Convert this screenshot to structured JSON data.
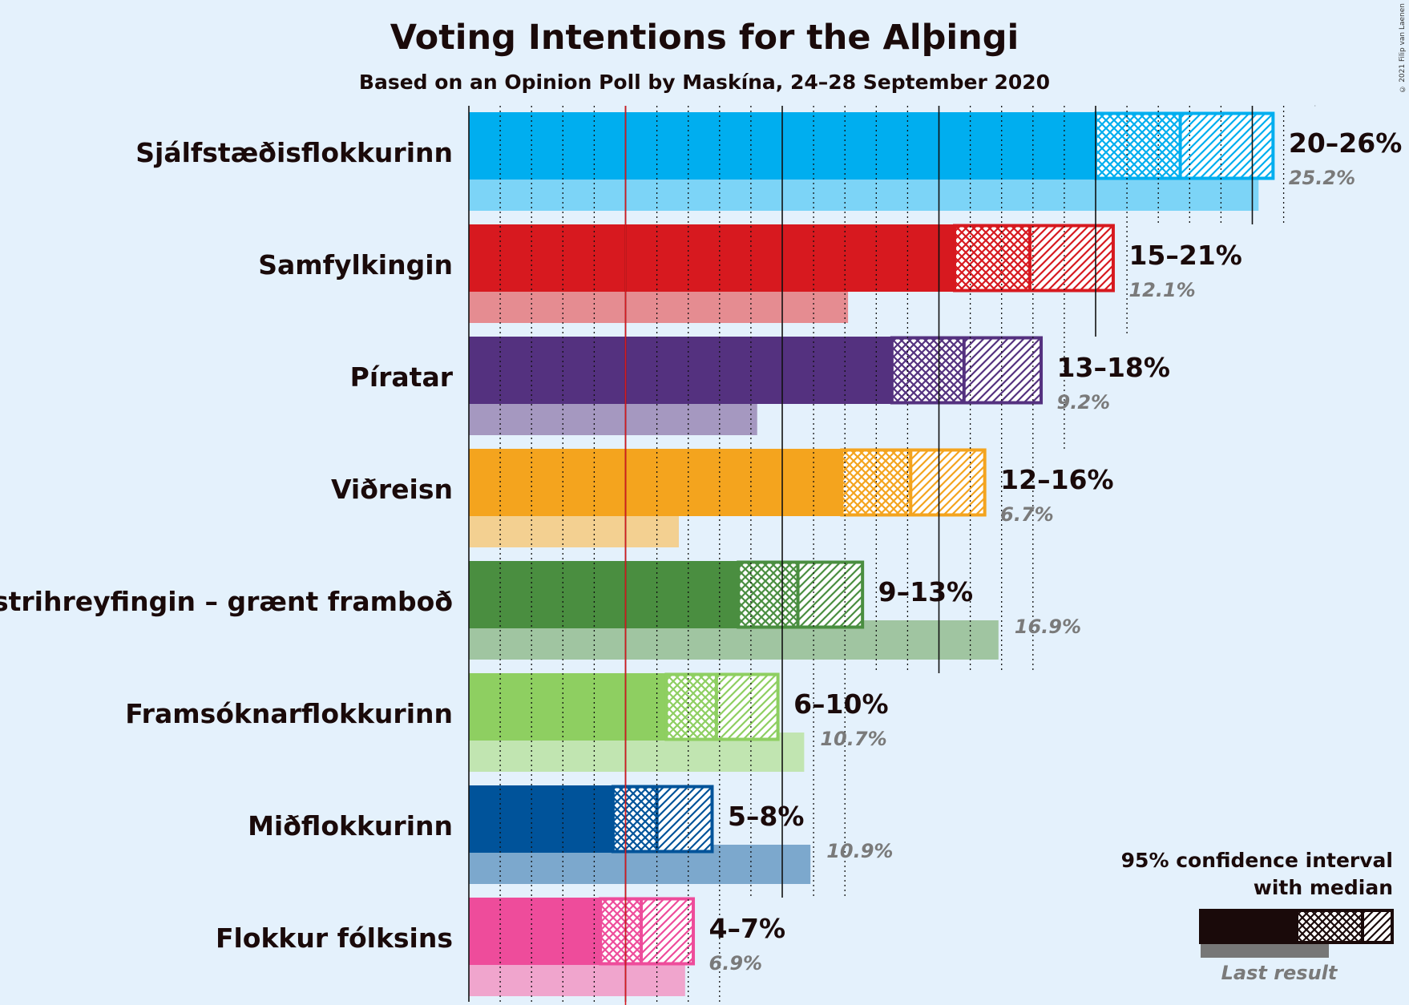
{
  "chart_data": {
    "type": "bar",
    "orientation": "horizontal",
    "title": "Voting Intentions for the Alþingi",
    "subtitle": "Based on an Opinion Poll by Maskína, 24–28 September 2020",
    "copyright": "© 2021 Filip van Laenen",
    "xlim": [
      0,
      28
    ],
    "threshold": 5,
    "grid": true,
    "categories": [
      "Sjálfstæðisflokkurinn",
      "Samfylkingin",
      "Píratar",
      "Viðreisn",
      "Vinstrihreyfingin – grænt framboð",
      "Framsóknarflokkurinn",
      "Miðflokkurinn",
      "Flokkur fólksins"
    ],
    "series": [
      {
        "name": "Sjálfstæðisflokkurinn",
        "color": "#00aeef",
        "ci_low": 20.0,
        "median": 22.7,
        "ci_high": 25.7,
        "range_label": "20–26%",
        "last_result": 25.2,
        "last_label": "25.2%"
      },
      {
        "name": "Samfylkingin",
        "color": "#d7191f",
        "ci_low": 15.5,
        "median": 17.9,
        "ci_high": 20.6,
        "range_label": "15–21%",
        "last_result": 12.1,
        "last_label": "12.1%"
      },
      {
        "name": "Píratar",
        "color": "#54317f",
        "ci_low": 13.5,
        "median": 15.8,
        "ci_high": 18.3,
        "range_label": "13–18%",
        "last_result": 9.2,
        "last_label": "9.2%"
      },
      {
        "name": "Viðreisn",
        "color": "#f4a41e",
        "ci_low": 11.9,
        "median": 14.1,
        "ci_high": 16.5,
        "range_label": "12–16%",
        "last_result": 6.7,
        "last_label": "6.7%"
      },
      {
        "name": "Vinstrihreyfingin – grænt framboð",
        "color": "#4a8e40",
        "ci_low": 8.6,
        "median": 10.5,
        "ci_high": 12.6,
        "range_label": "9–13%",
        "last_result": 16.9,
        "last_label": "16.9%"
      },
      {
        "name": "Framsóknarflokkurinn",
        "color": "#8ecf61",
        "ci_low": 6.3,
        "median": 7.9,
        "ci_high": 9.9,
        "range_label": "6–10%",
        "last_result": 10.7,
        "last_label": "10.7%"
      },
      {
        "name": "Miðflokkurinn",
        "color": "#00539a",
        "ci_low": 4.6,
        "median": 6.0,
        "ci_high": 7.8,
        "range_label": "5–8%",
        "last_result": 10.9,
        "last_label": "10.9%"
      },
      {
        "name": "Flokkur fólksins",
        "color": "#ee4c9b",
        "ci_low": 4.2,
        "median": 5.5,
        "ci_high": 7.2,
        "range_label": "4–7%",
        "last_result": 6.9,
        "last_label": "6.9%"
      }
    ],
    "legend": {
      "placement": "bottom-right",
      "title_line1": "95% confidence interval",
      "title_line2": "with median",
      "last_result_label": "Last result"
    }
  }
}
